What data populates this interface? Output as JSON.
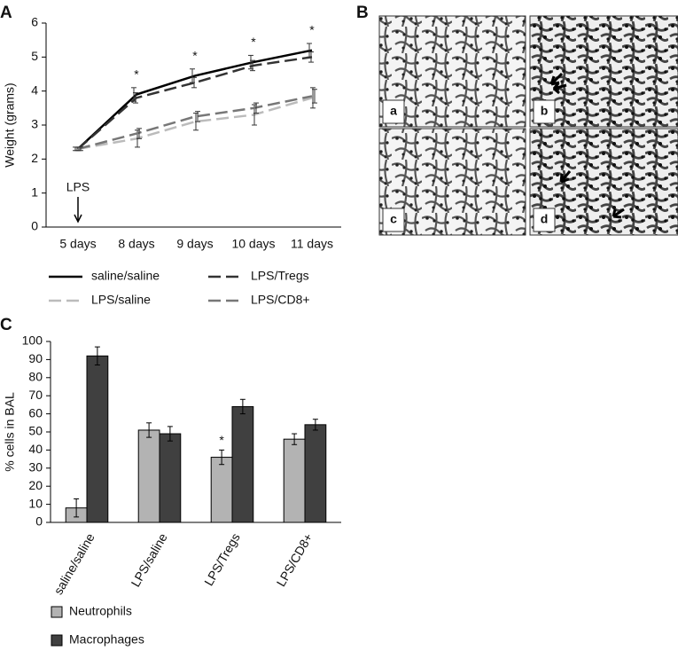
{
  "chart_data": [
    {
      "type": "line",
      "panel_label": "A",
      "ylabel": "Weight (grams)",
      "categories": [
        "5 days",
        "8 days",
        "9 days",
        "10 days",
        "11 days"
      ],
      "ylim": [
        0,
        6
      ],
      "yticks": [
        0,
        1,
        2,
        3,
        4,
        5,
        6
      ],
      "annotation": "LPS",
      "significance": [
        null,
        "*",
        "*",
        "*",
        "*"
      ],
      "series": [
        {
          "name": "saline/saline",
          "color": "#000000",
          "line_style": "solid",
          "values": [
            2.3,
            3.9,
            4.45,
            4.85,
            5.2
          ],
          "errors": [
            0.05,
            0.2,
            0.2,
            0.2,
            0.2
          ]
        },
        {
          "name": "LPS/Tregs",
          "color": "#333333",
          "line_style": "dashed",
          "values": [
            2.3,
            3.8,
            4.25,
            4.75,
            5.0
          ],
          "errors": [
            0.05,
            0.15,
            0.15,
            0.15,
            0.15
          ]
        },
        {
          "name": "LPS/saline",
          "color": "#bbbbbb",
          "line_style": "dashed",
          "values": [
            2.3,
            2.6,
            3.1,
            3.3,
            3.8
          ],
          "errors": [
            0.05,
            0.25,
            0.25,
            0.3,
            0.3
          ]
        },
        {
          "name": "LPS/CD8+",
          "color": "#777777",
          "line_style": "dashed",
          "values": [
            2.3,
            2.75,
            3.25,
            3.5,
            3.85
          ],
          "errors": [
            0.05,
            0.15,
            0.15,
            0.15,
            0.2
          ]
        }
      ]
    },
    {
      "type": "bar",
      "panel_label": "C",
      "ylabel": "% cells in BAL",
      "categories": [
        "saline/saline",
        "LPS/saline",
        "LPS/Tregs",
        "LPS/CD8+"
      ],
      "ylim": [
        0,
        100
      ],
      "yticks": [
        0,
        10,
        20,
        30,
        40,
        50,
        60,
        70,
        80,
        90,
        100
      ],
      "series": [
        {
          "name": "Neutrophils",
          "color": "#b3b3b3",
          "values": [
            8,
            51,
            36,
            46
          ],
          "errors": [
            5,
            4,
            4,
            3
          ],
          "markers": [
            null,
            null,
            "*",
            null
          ]
        },
        {
          "name": "Macrophages",
          "color": "#404040",
          "values": [
            92,
            49,
            64,
            54
          ],
          "errors": [
            5,
            4,
            4,
            3
          ],
          "markers": [
            null,
            null,
            null,
            null
          ]
        }
      ]
    }
  ],
  "micrographs": {
    "panel_label": "B",
    "images": [
      "a",
      "b",
      "c",
      "d"
    ]
  }
}
